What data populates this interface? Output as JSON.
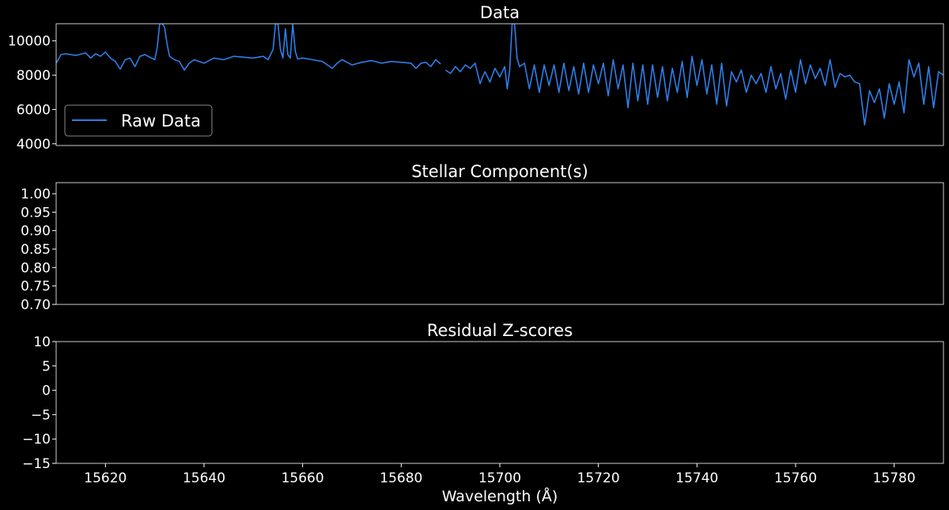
{
  "figure": {
    "background": "#000000",
    "text_color": "#ffffff",
    "frame_color": "#cccccc"
  },
  "chart_data": [
    {
      "type": "line",
      "title": "Data",
      "xlim": [
        15610,
        15790
      ],
      "ylim": [
        3900,
        11000
      ],
      "yticks": [
        4000,
        6000,
        8000,
        10000
      ],
      "yticklabels": [
        "4000",
        "6000",
        "8000",
        "10000"
      ],
      "legend": {
        "position": "lower-left",
        "entries": [
          "Raw Data"
        ]
      },
      "series": [
        {
          "name": "Raw Data",
          "color": "#2e7fe8",
          "segments": [
            {
              "x": [
                15610,
                15611,
                15612,
                15614,
                15616,
                15617,
                15618,
                15619,
                15620,
                15621,
                15622,
                15623,
                15624,
                15625,
                15626,
                15627,
                15628,
                15629,
                15630,
                15630.5,
                15631,
                15631.5,
                15632,
                15632.5,
                15633,
                15634,
                15635,
                15636,
                15637,
                15638,
                15640,
                15642,
                15644,
                15646,
                15648,
                15650,
                15652,
                15653,
                15654,
                15654.5,
                15655,
                15655.5,
                15656,
                15656.5,
                15657,
                15657.5,
                15658,
                15658.5,
                15659,
                15660,
                15662,
                15664,
                15666,
                15667,
                15668,
                15670,
                15672,
                15674,
                15676,
                15678,
                15680,
                15682,
                15683,
                15684,
                15685,
                15686,
                15687,
                15688
              ],
              "y": [
                8700,
                9200,
                9250,
                9150,
                9300,
                9000,
                9250,
                9100,
                9350,
                9000,
                8800,
                8350,
                8900,
                9000,
                8500,
                9100,
                9200,
                9050,
                8900,
                9600,
                11000,
                11000,
                10800,
                9800,
                9100,
                8900,
                8800,
                8300,
                8700,
                8900,
                8700,
                9000,
                8900,
                9100,
                9050,
                9000,
                9100,
                8900,
                9500,
                11000,
                11000,
                9500,
                9000,
                10700,
                9200,
                9000,
                11000,
                9400,
                8950,
                9000,
                8900,
                8800,
                8400,
                8700,
                8900,
                8600,
                8750,
                8850,
                8700,
                8800,
                8750,
                8700,
                8400,
                8700,
                8750,
                8500,
                8900,
                8650
              ]
            },
            {
              "x": [
                15689,
                15690,
                15691,
                15692,
                15693,
                15694,
                15695,
                15696,
                15696.5,
                15697,
                15698,
                15699,
                15700,
                15701,
                15701.5,
                15702,
                15702.5,
                15703,
                15703.5,
                15704,
                15705,
                15706,
                15707,
                15708,
                15709,
                15710,
                15711,
                15712,
                15713,
                15714,
                15715,
                15716,
                15717,
                15718,
                15719,
                15720,
                15721,
                15722,
                15723,
                15724,
                15725,
                15726,
                15727,
                15728,
                15729,
                15730,
                15731,
                15732,
                15733,
                15734,
                15735,
                15736,
                15737,
                15738,
                15739,
                15740,
                15741,
                15742,
                15743,
                15744,
                15745,
                15746,
                15747,
                15748,
                15749,
                15750,
                15751,
                15752,
                15753,
                15754,
                15755,
                15756,
                15757,
                15758,
                15759,
                15760,
                15761,
                15762,
                15763,
                15764,
                15765,
                15766,
                15767,
                15768,
                15769,
                15770,
                15771,
                15772,
                15773,
                15774,
                15775,
                15776,
                15777,
                15778,
                15779,
                15780,
                15781,
                15782,
                15783,
                15784,
                15785,
                15786,
                15787,
                15788,
                15789,
                15790
              ],
              "y": [
                8300,
                8100,
                8500,
                8200,
                8600,
                8400,
                8700,
                7500,
                7900,
                8200,
                7600,
                8400,
                7900,
                8500,
                7200,
                8300,
                11000,
                11000,
                9000,
                8500,
                8700,
                7200,
                8600,
                7000,
                8600,
                7400,
                8600,
                7000,
                8700,
                7100,
                8500,
                6900,
                8700,
                7000,
                8600,
                7500,
                8700,
                6800,
                8900,
                7200,
                8600,
                6100,
                8700,
                6500,
                8600,
                6300,
                8600,
                6700,
                8500,
                6500,
                8400,
                7000,
                8800,
                6700,
                9100,
                7400,
                8900,
                6900,
                8600,
                6300,
                8700,
                6200,
                8200,
                7600,
                8300,
                7000,
                8000,
                7500,
                8100,
                7000,
                8500,
                7200,
                8100,
                6600,
                8300,
                7000,
                8900,
                7500,
                8600,
                7800,
                8400,
                7400,
                8900,
                7300,
                8100,
                7900,
                8000,
                7600,
                7500,
                5100,
                7100,
                6400,
                7200,
                5500,
                7500,
                6300,
                7600,
                5800,
                8900,
                7900,
                8700,
                6300,
                8500,
                6100,
                8200,
                8000
              ]
            }
          ]
        }
      ]
    },
    {
      "type": "line",
      "title": "Stellar Component(s)",
      "xlim": [
        15610,
        15790
      ],
      "ylim": [
        0.7,
        1.03
      ],
      "yticks": [
        0.7,
        0.75,
        0.8,
        0.85,
        0.9,
        0.95,
        1.0
      ],
      "yticklabels": [
        "0.70",
        "0.75",
        "0.80",
        "0.85",
        "0.90",
        "0.95",
        "1.00"
      ],
      "series": []
    },
    {
      "type": "line",
      "title": "Residual Z-scores",
      "xlim": [
        15610,
        15790
      ],
      "ylim": [
        -15,
        10
      ],
      "yticks": [
        -15,
        -10,
        -5,
        0,
        5,
        10
      ],
      "yticklabels": [
        "−15",
        "−10",
        "−5",
        "0",
        "5",
        "10"
      ],
      "xticks": [
        15620,
        15640,
        15660,
        15680,
        15700,
        15720,
        15740,
        15760,
        15780
      ],
      "xticklabels": [
        "15620",
        "15640",
        "15660",
        "15680",
        "15700",
        "15720",
        "15740",
        "15760",
        "15780"
      ],
      "xlabel": "Wavelength (Å)",
      "series": []
    }
  ]
}
